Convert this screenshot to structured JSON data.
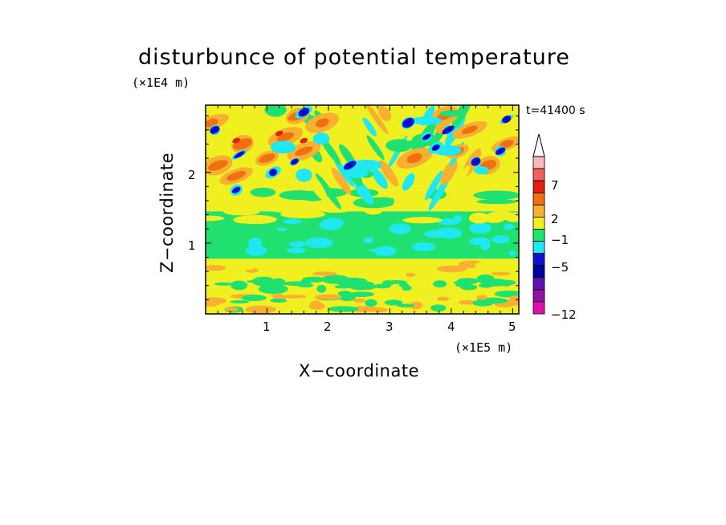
{
  "chart_data": {
    "type": "heatmap",
    "title": "disturbunce of potential temperature",
    "time_label": "t=41400 s",
    "xlabel": "X−coordinate",
    "ylabel": "Z−coordinate",
    "x_unit": "(×1E5 m)",
    "y_unit": "(×1E4 m)",
    "xlim": [
      0,
      5.1
    ],
    "ylim": [
      0,
      2.95
    ],
    "x_ticks": [
      "1",
      "2",
      "3",
      "4",
      "5"
    ],
    "y_ticks": [
      "1",
      "2"
    ],
    "colorbar_labels": [
      "7",
      "2",
      "−1",
      "−5",
      "−12"
    ],
    "colorbar_colors": [
      "#f9b9b9",
      "#f06060",
      "#e02010",
      "#f07010",
      "#f8b030",
      "#f0f020",
      "#20e070",
      "#20e8f0",
      "#1010d0",
      "#0000a0",
      "#6010b0",
      "#9010a0",
      "#e010b0"
    ],
    "contour_levels": [
      -12,
      -5,
      -1,
      2,
      7
    ],
    "regions": [
      {
        "zone": "upper (z 1.7-2.9)",
        "description": "alternating warm (orange/red) and cold (blue) cells, gravity-wave pattern"
      },
      {
        "zone": "middle (z 0.8-1.5)",
        "description": "mostly green (near zero) with cyan patches"
      },
      {
        "zone": "lower (z 0.1-0.7)",
        "description": "yellow/orange band with green streaks"
      }
    ]
  }
}
